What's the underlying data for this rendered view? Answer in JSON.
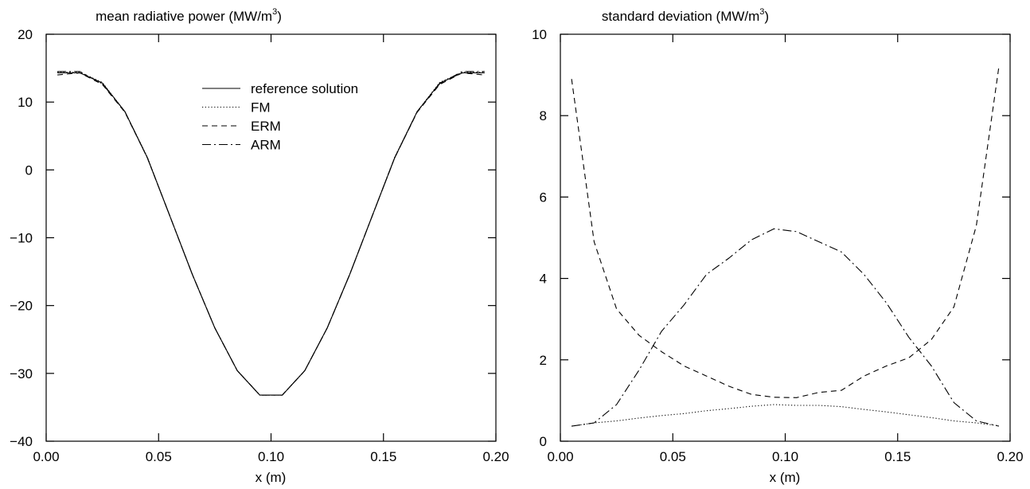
{
  "chart_data": [
    {
      "type": "line",
      "title": "mean radiative power (MW/m",
      "title_sup": "3",
      "title_end": ")",
      "xlabel": "x (m)",
      "ylabel": "",
      "xlim": [
        0.0,
        0.2
      ],
      "ylim": [
        -40,
        20
      ],
      "x_ticks": [
        0.0,
        0.05,
        0.1,
        0.15,
        0.2
      ],
      "x_tick_labels": [
        "0.00",
        "0.05",
        "0.10",
        "0.15",
        "0.20"
      ],
      "y_ticks": [
        -40,
        -30,
        -20,
        -10,
        0,
        10,
        20
      ],
      "y_tick_labels": [
        "−40",
        "−30",
        "−20",
        "−10",
        "0",
        "10",
        "20"
      ],
      "legend_position": "top-center",
      "grid": false,
      "series": [
        {
          "name": "reference solution",
          "dash": "solid",
          "x": [
            0.005,
            0.015,
            0.025,
            0.035,
            0.045,
            0.055,
            0.065,
            0.075,
            0.085,
            0.095,
            0.105,
            0.115,
            0.125,
            0.135,
            0.145,
            0.155,
            0.165,
            0.175,
            0.185,
            0.195
          ],
          "y": [
            14.3,
            14.3,
            12.8,
            8.6,
            1.8,
            -6.8,
            -15.4,
            -23.3,
            -29.6,
            -33.2,
            -33.2,
            -29.6,
            -23.3,
            -15.4,
            -6.8,
            1.8,
            8.6,
            12.8,
            14.3,
            14.3
          ]
        },
        {
          "name": "FM",
          "dash": "dotted",
          "x": [
            0.005,
            0.015,
            0.025,
            0.035,
            0.045,
            0.055,
            0.065,
            0.075,
            0.085,
            0.095,
            0.105,
            0.115,
            0.125,
            0.135,
            0.145,
            0.155,
            0.165,
            0.175,
            0.185,
            0.195
          ],
          "y": [
            14.4,
            14.4,
            12.9,
            8.6,
            1.9,
            -6.8,
            -15.4,
            -23.3,
            -29.6,
            -33.2,
            -33.2,
            -29.6,
            -23.3,
            -15.4,
            -6.8,
            1.9,
            8.6,
            12.9,
            14.4,
            14.4
          ]
        },
        {
          "name": "ERM",
          "dash": "dashed",
          "x": [
            0.005,
            0.015,
            0.025,
            0.035,
            0.045,
            0.055,
            0.065,
            0.075,
            0.085,
            0.095,
            0.105,
            0.115,
            0.125,
            0.135,
            0.145,
            0.155,
            0.165,
            0.175,
            0.185,
            0.195
          ],
          "y": [
            14.0,
            14.3,
            12.6,
            8.5,
            1.8,
            -6.8,
            -15.4,
            -23.3,
            -29.6,
            -33.2,
            -33.2,
            -29.6,
            -23.3,
            -15.4,
            -6.8,
            1.8,
            8.5,
            12.6,
            14.3,
            14.0
          ]
        },
        {
          "name": "ARM",
          "dash": "dashdot",
          "x": [
            0.005,
            0.015,
            0.025,
            0.035,
            0.045,
            0.055,
            0.065,
            0.075,
            0.085,
            0.095,
            0.105,
            0.115,
            0.125,
            0.135,
            0.145,
            0.155,
            0.165,
            0.175,
            0.185,
            0.195
          ],
          "y": [
            14.5,
            14.5,
            12.7,
            8.6,
            1.8,
            -6.8,
            -15.4,
            -23.3,
            -29.6,
            -33.2,
            -33.2,
            -29.6,
            -23.3,
            -15.4,
            -6.8,
            1.8,
            8.6,
            12.7,
            14.5,
            14.5
          ]
        }
      ]
    },
    {
      "type": "line",
      "title": "standard deviation (MW/m",
      "title_sup": "3",
      "title_end": ")",
      "xlabel": "x (m)",
      "ylabel": "",
      "xlim": [
        0.0,
        0.2
      ],
      "ylim": [
        0,
        10
      ],
      "x_ticks": [
        0.0,
        0.05,
        0.1,
        0.15,
        0.2
      ],
      "x_tick_labels": [
        "0.00",
        "0.05",
        "0.10",
        "0.15",
        "0.20"
      ],
      "y_ticks": [
        0,
        2,
        4,
        6,
        8,
        10
      ],
      "y_tick_labels": [
        "0",
        "2",
        "4",
        "6",
        "8",
        "10"
      ],
      "grid": false,
      "series": [
        {
          "dash": "dotted",
          "x": [
            0.005,
            0.015,
            0.025,
            0.035,
            0.045,
            0.055,
            0.065,
            0.075,
            0.085,
            0.095,
            0.105,
            0.115,
            0.125,
            0.135,
            0.145,
            0.155,
            0.165,
            0.175,
            0.185,
            0.195
          ],
          "y": [
            0.37,
            0.45,
            0.5,
            0.57,
            0.63,
            0.68,
            0.75,
            0.8,
            0.86,
            0.9,
            0.88,
            0.88,
            0.85,
            0.78,
            0.72,
            0.65,
            0.58,
            0.5,
            0.45,
            0.38
          ]
        },
        {
          "dash": "dashed",
          "x": [
            0.005,
            0.015,
            0.025,
            0.035,
            0.045,
            0.055,
            0.065,
            0.075,
            0.085,
            0.095,
            0.105,
            0.115,
            0.125,
            0.135,
            0.145,
            0.155,
            0.165,
            0.175,
            0.185,
            0.195
          ],
          "y": [
            8.9,
            4.9,
            3.25,
            2.6,
            2.2,
            1.85,
            1.6,
            1.35,
            1.15,
            1.08,
            1.07,
            1.2,
            1.25,
            1.6,
            1.85,
            2.05,
            2.5,
            3.3,
            5.3,
            9.2
          ]
        },
        {
          "dash": "dashdot",
          "x": [
            0.005,
            0.015,
            0.025,
            0.035,
            0.045,
            0.055,
            0.065,
            0.075,
            0.085,
            0.095,
            0.105,
            0.115,
            0.125,
            0.135,
            0.145,
            0.155,
            0.165,
            0.175,
            0.185,
            0.195
          ],
          "y": [
            0.37,
            0.45,
            0.9,
            1.75,
            2.7,
            3.35,
            4.1,
            4.5,
            4.95,
            5.22,
            5.15,
            4.9,
            4.65,
            4.1,
            3.4,
            2.55,
            1.85,
            0.95,
            0.5,
            0.37
          ]
        }
      ]
    }
  ]
}
